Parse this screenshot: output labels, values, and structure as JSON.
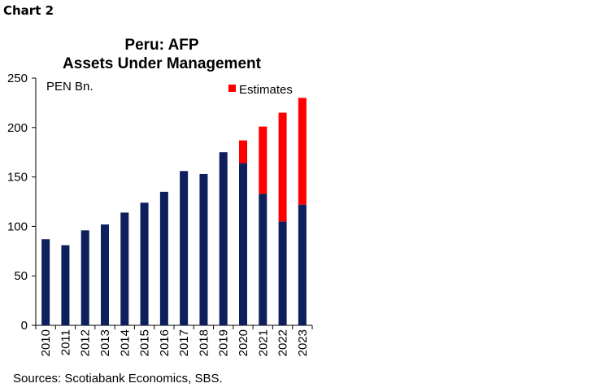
{
  "header": {
    "chart_number": "Chart 2"
  },
  "source": "Sources: Scotiabank Economics, SBS.",
  "colors": {
    "base": "#0d1f5c",
    "estimates": "#ff0000",
    "axis": "#000000"
  },
  "chart_data": {
    "type": "bar",
    "stacked": true,
    "title": [
      "Peru: AFP",
      "Assets Under Management"
    ],
    "unit_label": "PEN Bn.",
    "categories": [
      "2010",
      "2011",
      "2012",
      "2013",
      "2014",
      "2015",
      "2016",
      "2017",
      "2018",
      "2019",
      "2020",
      "2021",
      "2022",
      "2023"
    ],
    "series": [
      {
        "values": [
          87,
          81,
          96,
          102,
          114,
          124,
          135,
          156,
          153,
          175,
          164,
          133,
          105,
          122
        ]
      },
      {
        "name": "Estimates",
        "values": [
          0,
          0,
          0,
          0,
          0,
          0,
          0,
          0,
          0,
          0,
          23,
          68,
          110,
          108
        ]
      }
    ],
    "ylim": [
      0,
      250
    ],
    "yticks": [
      0,
      50,
      100,
      150,
      200,
      250
    ],
    "ytick_labels": [
      "0",
      "50",
      "100",
      "150",
      "200",
      "250"
    ],
    "legend": {
      "entries": [
        "Estimates"
      ],
      "position": "top-right"
    },
    "grid": false
  }
}
